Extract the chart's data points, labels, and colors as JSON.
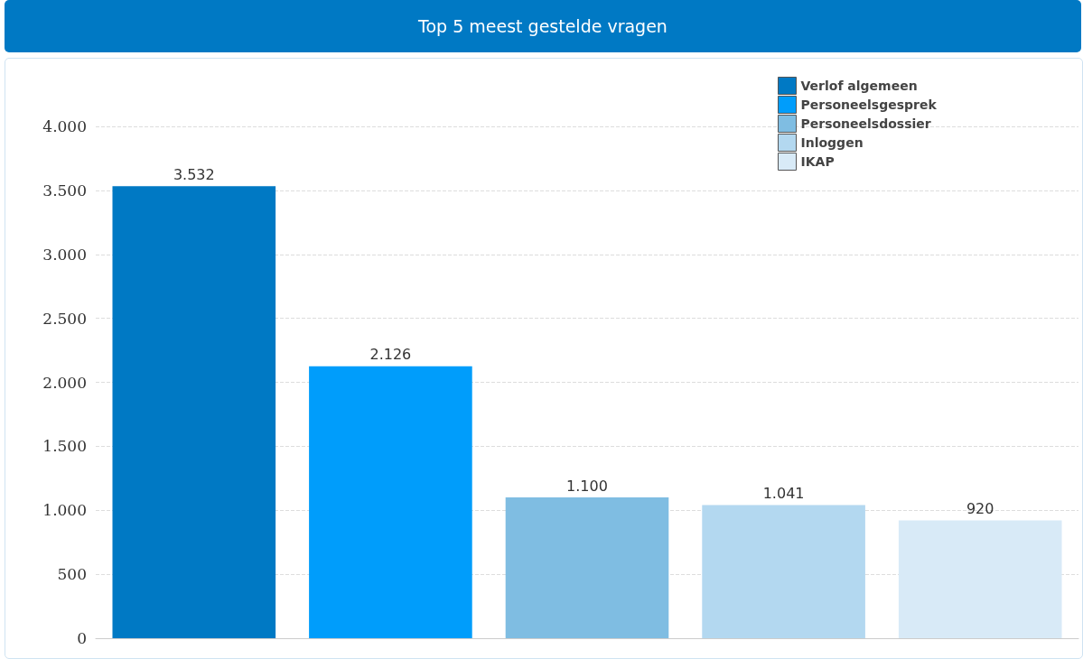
{
  "chart_data": {
    "type": "bar",
    "title": "Top 5 meest gestelde vragen",
    "categories": [
      null,
      null,
      null,
      null,
      null
    ],
    "series": [
      {
        "name": "Verlof algemeen",
        "color": "#0079c4",
        "values": [
          3532,
          null,
          null,
          null,
          null
        ],
        "value_labels": [
          "3.532",
          null,
          null,
          null,
          null
        ]
      },
      {
        "name": "Personeelsgesprek",
        "color": "#009dfb",
        "values": [
          null,
          2126,
          null,
          null,
          null
        ],
        "value_labels": [
          null,
          "2.126",
          null,
          null,
          null
        ]
      },
      {
        "name": "Personeelsdossier",
        "color": "#7fbde2",
        "values": [
          null,
          null,
          1100,
          null,
          null
        ],
        "value_labels": [
          null,
          null,
          "1.100",
          null,
          null
        ]
      },
      {
        "name": "Inloggen",
        "color": "#b3d8f0",
        "values": [
          null,
          null,
          null,
          1041,
          null
        ],
        "value_labels": [
          null,
          null,
          null,
          "1.041",
          null
        ]
      },
      {
        "name": "IKAP",
        "color": "#d8eaf7",
        "values": [
          null,
          null,
          null,
          null,
          920
        ],
        "value_labels": [
          null,
          null,
          null,
          null,
          "920"
        ]
      }
    ],
    "ylim": [
      0,
      4000
    ],
    "yticks": [
      0,
      {
        "value": 500,
        "label": "500"
      },
      {
        "value": 1000,
        "label": "1.000"
      },
      {
        "value": 1500,
        "label": "1.500"
      },
      {
        "value": 2000,
        "label": "2.000"
      },
      {
        "value": 2500,
        "label": "2.500"
      },
      {
        "value": 3000,
        "label": "3.000"
      },
      {
        "value": 3500,
        "label": "3.500"
      },
      {
        "value": 4000,
        "label": "4.000"
      }
    ],
    "grid": "y",
    "legend": "top right"
  }
}
